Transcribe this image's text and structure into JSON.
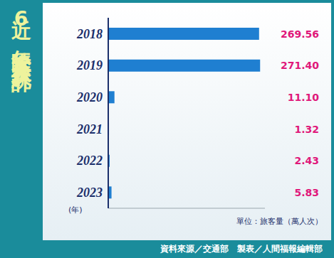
{
  "chart_data": {
    "type": "bar",
    "orientation": "horizontal",
    "title": "近6年陸客來台人次統計",
    "categories": [
      "2018",
      "2019",
      "2020",
      "2021",
      "2022",
      "2023"
    ],
    "values": [
      269.56,
      271.4,
      11.1,
      1.32,
      2.43,
      5.83
    ],
    "value_labels": [
      "269.56",
      "271.40",
      "11.10",
      "1.32",
      "2.43",
      "5.83"
    ],
    "color": "#1f7fd1",
    "xlim": [
      0,
      280
    ],
    "tick_labels": "y",
    "data_labels": true,
    "ylabel": "(年)",
    "unit_note": "單位：旅客量（萬人次）",
    "source": "資料來源／交通部　製表／人間福報編輯部"
  }
}
